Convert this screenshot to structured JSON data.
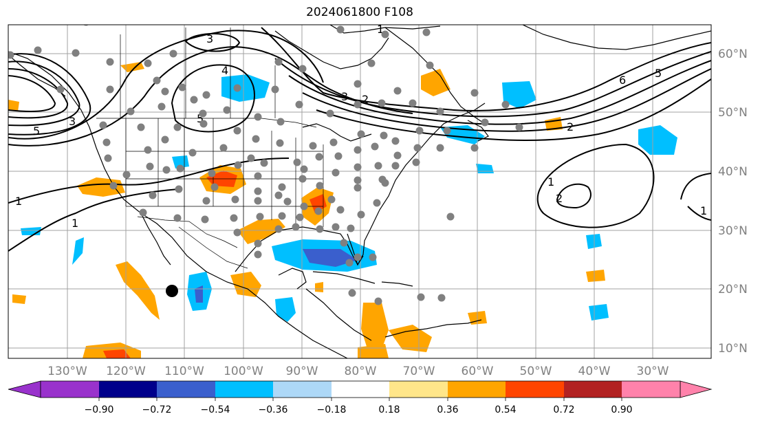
{
  "title": "2024061800 F108",
  "lat_labels": [
    "60°N",
    "50°N",
    "40°N",
    "30°N",
    "20°N",
    "10°N"
  ],
  "lon_labels": [
    "130°W",
    "120°W",
    "110°W",
    "100°W",
    "90°W",
    "80°W",
    "70°W",
    "60°W",
    "50°W",
    "40°W",
    "30°W"
  ],
  "colorbar": {
    "tick_labels": [
      "−0.90",
      "−0.72",
      "−0.54",
      "−0.36",
      "−0.18",
      "0.18",
      "0.36",
      "0.54",
      "0.72",
      "0.90"
    ],
    "colors": [
      "#9932cc",
      "#00008b",
      "#3a5fcd",
      "#00bfff",
      "#add8f7",
      "#ffffff",
      "#ffe68a",
      "#ffa500",
      "#ff4500",
      "#b22222",
      "#ff82ab"
    ]
  },
  "contour_labels": [
    "3",
    "4",
    "5",
    "3",
    "5",
    "3",
    "2",
    "1",
    "1",
    "1",
    "2",
    "1",
    "2",
    "6",
    "5",
    "1"
  ],
  "colors": {
    "contour": "#000000",
    "coast": "#000000",
    "grid": "#a0a0a0",
    "station": "#808080",
    "marker": "#000000"
  }
}
